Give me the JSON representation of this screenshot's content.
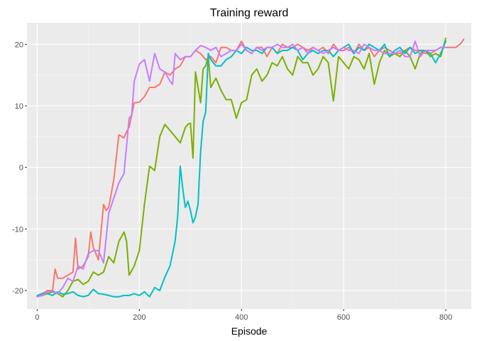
{
  "chart_data": {
    "type": "line",
    "title": "Training reward",
    "xlabel": "Episode",
    "ylabel": "",
    "xlim": [
      -20,
      850
    ],
    "ylim": [
      -23,
      23.5
    ],
    "x_ticks": [
      0,
      200,
      400,
      600,
      800
    ],
    "y_ticks": [
      -20,
      -10,
      0,
      10,
      20
    ],
    "grid": true,
    "legend": "none",
    "series": [
      {
        "color": "#F8766D",
        "x": [
          0,
          10,
          20,
          30,
          35,
          40,
          50,
          60,
          70,
          75,
          80,
          90,
          100,
          105,
          110,
          120,
          130,
          135,
          140,
          150,
          160,
          170,
          175,
          180,
          190,
          200,
          210,
          220,
          230,
          240,
          250,
          260,
          270,
          280,
          290,
          300,
          310,
          320,
          330,
          340,
          350,
          360,
          370,
          380,
          390,
          400,
          410,
          420,
          430,
          440,
          450,
          460,
          470,
          480,
          490,
          500,
          510,
          520,
          530,
          540,
          550,
          560,
          570,
          580,
          590,
          600,
          610,
          620,
          630,
          640,
          650,
          660,
          670,
          680,
          690,
          700,
          710,
          720,
          730,
          740,
          750,
          760,
          770,
          780,
          790,
          800,
          810,
          820,
          830,
          835
        ],
        "y": [
          -21,
          -20.5,
          -20,
          -20,
          -16.5,
          -18,
          -18,
          -17.5,
          -17,
          -11.5,
          -16.5,
          -16,
          -14.5,
          -10.5,
          -13,
          -15,
          -6,
          -7,
          -6.5,
          -2,
          5.3,
          4.8,
          5.8,
          6.5,
          10.5,
          10.6,
          11.5,
          13,
          13,
          13.5,
          15.5,
          15,
          16,
          16.5,
          18,
          18,
          19,
          18.5,
          17.5,
          18,
          17,
          19.5,
          19.5,
          19,
          19,
          20.5,
          19,
          18.5,
          19.5,
          19.5,
          18,
          19.5,
          18.5,
          20,
          19.5,
          19.5,
          20,
          19.5,
          19,
          19.5,
          19,
          19.5,
          18.5,
          20,
          19,
          19,
          19.5,
          18.5,
          20,
          19,
          19.5,
          18,
          19,
          19.5,
          19,
          18.5,
          18.5,
          19,
          19.5,
          19,
          19,
          18.5,
          18.5,
          19,
          19.5,
          19.5,
          19.5,
          19.5,
          20.2,
          20.8
        ]
      },
      {
        "color": "#7CAE00",
        "x": [
          0,
          10,
          20,
          30,
          40,
          50,
          60,
          70,
          80,
          90,
          100,
          110,
          120,
          130,
          140,
          150,
          160,
          170,
          175,
          180,
          190,
          200,
          210,
          220,
          230,
          240,
          250,
          260,
          270,
          280,
          290,
          295,
          300,
          305,
          310,
          320,
          325,
          330,
          335,
          340,
          350,
          360,
          370,
          380,
          390,
          400,
          410,
          420,
          430,
          440,
          450,
          460,
          470,
          480,
          490,
          500,
          510,
          520,
          530,
          540,
          550,
          560,
          570,
          580,
          590,
          600,
          610,
          620,
          630,
          640,
          650,
          660,
          670,
          680,
          690,
          700,
          710,
          720,
          730,
          740,
          750,
          760,
          770,
          780,
          790,
          800
        ],
        "y": [
          -21,
          -20.8,
          -20.5,
          -20.2,
          -20.5,
          -21,
          -20,
          -18.5,
          -18.2,
          -19,
          -18.5,
          -17,
          -17.5,
          -17,
          -14.5,
          -15.5,
          -12,
          -10.5,
          -12,
          -17.5,
          -16,
          -13.5,
          -6,
          0.2,
          -0.5,
          5,
          7,
          6,
          5,
          4,
          6.5,
          7,
          7.2,
          1.5,
          15.5,
          10.5,
          16,
          16.5,
          18,
          13,
          14.5,
          12.5,
          11,
          11,
          8,
          10.5,
          11,
          15,
          16,
          14,
          15,
          17,
          16.5,
          18,
          16,
          15,
          18,
          17,
          17,
          15,
          16,
          18,
          17,
          10.8,
          18,
          17,
          16,
          18,
          17.5,
          16,
          18.5,
          13.5,
          17,
          19,
          18,
          18.5,
          18,
          19,
          18,
          16,
          18.5,
          19,
          18,
          18.5,
          18,
          21
        ]
      },
      {
        "color": "#00BFC4",
        "x": [
          0,
          10,
          20,
          30,
          40,
          50,
          60,
          70,
          80,
          90,
          100,
          110,
          120,
          130,
          140,
          150,
          160,
          170,
          180,
          190,
          200,
          210,
          220,
          230,
          240,
          250,
          260,
          270,
          275,
          280,
          285,
          290,
          295,
          300,
          305,
          310,
          315,
          320,
          325,
          330,
          335,
          340,
          350,
          360,
          370,
          380,
          390,
          400,
          410,
          420,
          430,
          440,
          450,
          460,
          470,
          480,
          490,
          500,
          510,
          520,
          530,
          540,
          550,
          560,
          570,
          580,
          590,
          600,
          610,
          620,
          630,
          640,
          650,
          660,
          670,
          680,
          690,
          700,
          710,
          720,
          730,
          740,
          750,
          760,
          770,
          780,
          790,
          800
        ],
        "y": [
          -20.8,
          -20.5,
          -20.5,
          -20.8,
          -20.2,
          -20.6,
          -20.5,
          -20.2,
          -20.8,
          -21,
          -20.8,
          -19.8,
          -20.5,
          -20.6,
          -20.8,
          -21,
          -21,
          -20.8,
          -20.8,
          -20.5,
          -20.8,
          -20.2,
          -21,
          -19.5,
          -20,
          -17.8,
          -16,
          -12,
          -8,
          0.2,
          -3.5,
          -6.5,
          -5.5,
          -7,
          -9,
          -8,
          -6,
          2.5,
          7.5,
          9,
          18.5,
          17.5,
          16.5,
          16.5,
          17.5,
          18,
          19,
          18.5,
          19.5,
          19,
          19,
          18.5,
          19.5,
          19.5,
          18.5,
          19,
          19,
          19.5,
          19,
          17.5,
          18.5,
          19,
          18.5,
          19,
          19,
          18,
          19,
          19.5,
          20,
          18.5,
          19.5,
          19,
          20,
          19.5,
          19,
          20,
          18,
          19,
          19.5,
          18.5,
          19.5,
          18.5,
          19,
          19,
          18.5,
          17,
          18.5,
          20.5
        ]
      },
      {
        "color": "#C77CFF",
        "x": [
          0,
          10,
          20,
          30,
          40,
          50,
          60,
          70,
          80,
          90,
          100,
          110,
          120,
          130,
          140,
          150,
          160,
          170,
          180,
          185,
          190,
          200,
          210,
          220,
          230,
          240,
          250,
          260,
          265,
          270,
          280,
          290,
          300,
          310,
          320,
          330,
          340,
          350,
          360,
          370,
          380,
          390,
          400,
          410,
          420,
          430,
          440,
          450,
          460,
          470,
          480,
          490,
          500,
          510,
          520,
          530,
          540,
          550,
          560,
          570,
          580,
          590,
          600,
          610,
          620,
          630,
          640,
          650,
          660,
          670,
          680,
          690,
          700,
          710,
          720,
          730,
          740,
          750,
          760,
          770,
          780,
          790,
          800
        ],
        "y": [
          -21,
          -20.8,
          -20.2,
          -20,
          -20.5,
          -19.5,
          -18,
          -18.5,
          -16,
          -16.5,
          -14,
          -13.5,
          -13.5,
          -15.5,
          -7.5,
          -5,
          -2.5,
          -1,
          8,
          8.5,
          14,
          16.8,
          17.5,
          14,
          18.5,
          16,
          15.5,
          14,
          13.5,
          18.5,
          17.5,
          18,
          18,
          19,
          19.8,
          19.5,
          19,
          19.5,
          18,
          18.5,
          19,
          19,
          20,
          19,
          18.5,
          19.5,
          19,
          19.5,
          19.5,
          20,
          19.5,
          19.5,
          20,
          19,
          19.5,
          18.5,
          19.5,
          19,
          18.5,
          19,
          19.5,
          19,
          19.5,
          19,
          19,
          18.5,
          20,
          19.5,
          19,
          19,
          18.5,
          18.5,
          18.5,
          19,
          18,
          18,
          20.5,
          18,
          19,
          19,
          19,
          19.5,
          19.5
        ]
      }
    ]
  }
}
